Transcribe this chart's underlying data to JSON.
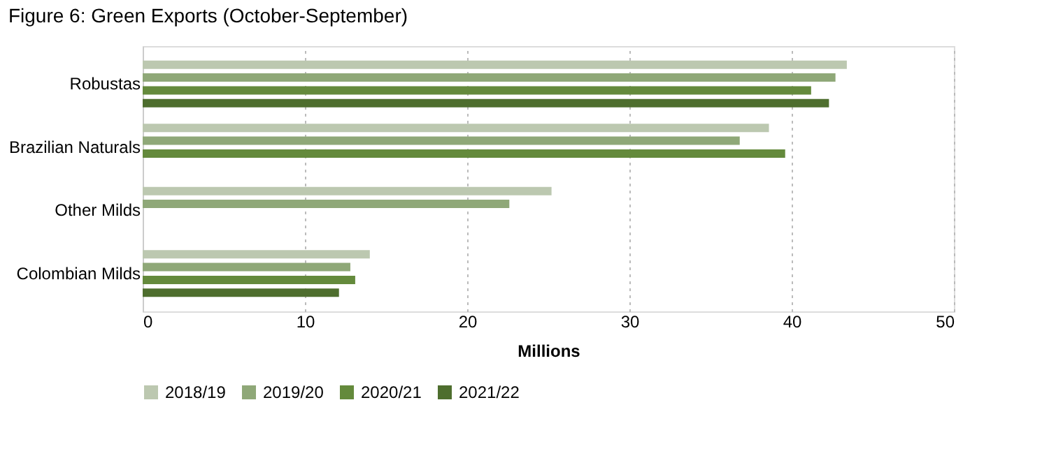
{
  "chart_data": {
    "type": "bar",
    "orientation": "horizontal",
    "title": "Figure 6: Green Exports (October-September)",
    "xlabel": "Millions",
    "categories": [
      "Robustas",
      "Brazilian Naturals",
      "Other Milds",
      "Colombian Milds"
    ],
    "series": [
      {
        "name": "2018/19",
        "color": "#bcc8b0",
        "values": [
          43.4,
          38.6,
          25.2,
          14.0
        ]
      },
      {
        "name": "2019/20",
        "color": "#8fa878",
        "values": [
          42.7,
          36.8,
          22.6,
          12.8
        ]
      },
      {
        "name": "2020/21",
        "color": "#648a3c",
        "values": [
          41.2,
          39.6,
          null,
          13.1
        ]
      },
      {
        "name": "2021/22",
        "color": "#4e6e2e",
        "values": [
          42.3,
          null,
          null,
          12.1
        ]
      }
    ],
    "xlim": [
      0,
      50
    ],
    "xticks": [
      0,
      10,
      20,
      30,
      40,
      50
    ],
    "grid": "x",
    "legend": "bottom"
  }
}
